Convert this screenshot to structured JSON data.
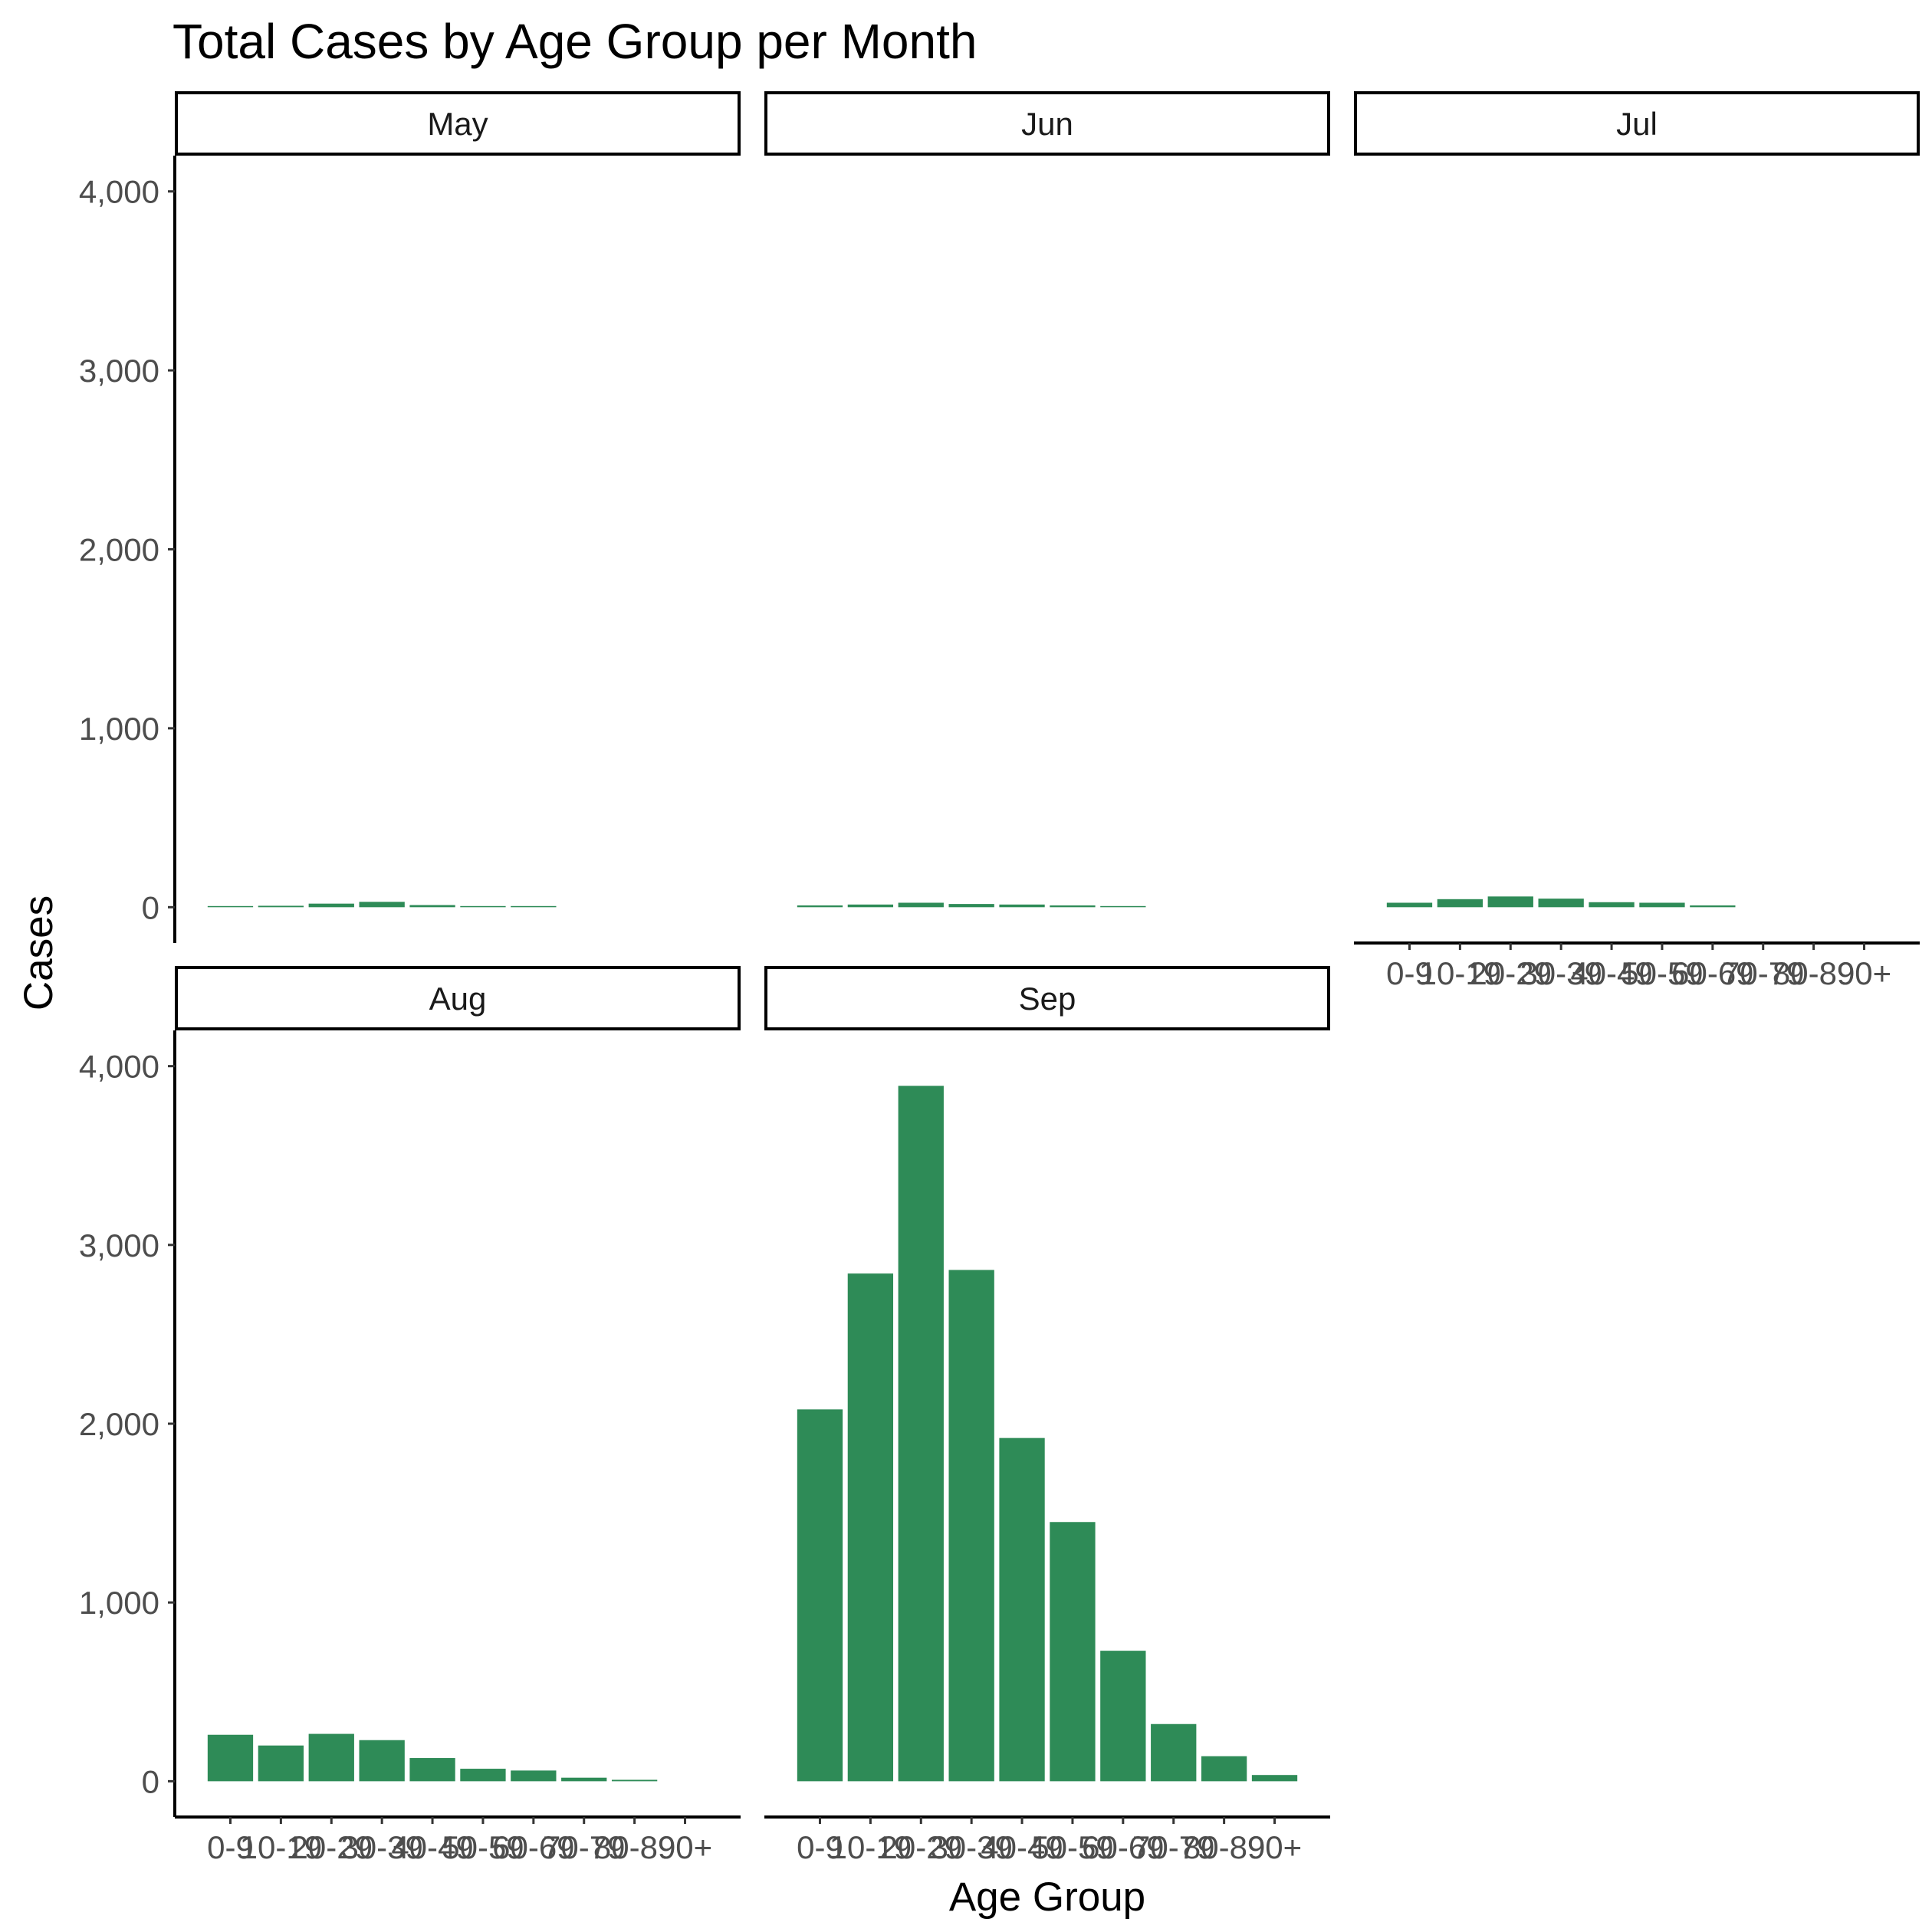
{
  "chart_data": {
    "type": "bar",
    "title": "Total Cases by Age Group per Month",
    "xlabel": "Age Group",
    "ylabel": "Cases",
    "ylim": [
      0,
      4000
    ],
    "y_ticks": [
      0,
      1000,
      2000,
      3000,
      4000
    ],
    "y_tick_labels": [
      "0",
      "1,000",
      "2,000",
      "3,000",
      "4,000"
    ],
    "categories": [
      "0-9",
      "10-19",
      "20-29",
      "30-39",
      "40-49",
      "50-59",
      "60-69",
      "70-79",
      "80-89",
      "90+"
    ],
    "bar_color": "#2E8B57",
    "grid": false,
    "legend": "none",
    "panels": [
      {
        "name": "May",
        "values": [
          5,
          8,
          20,
          30,
          12,
          6,
          4,
          0,
          0,
          0
        ]
      },
      {
        "name": "Jun",
        "values": [
          10,
          15,
          25,
          18,
          15,
          10,
          5,
          0,
          0,
          0
        ]
      },
      {
        "name": "Jul",
        "values": [
          25,
          45,
          60,
          48,
          28,
          25,
          10,
          0,
          0,
          0
        ]
      },
      {
        "name": "Aug",
        "values": [
          260,
          200,
          265,
          230,
          130,
          70,
          60,
          20,
          8,
          0
        ]
      },
      {
        "name": "Sep",
        "values": [
          2080,
          2840,
          3890,
          2860,
          1920,
          1450,
          730,
          320,
          140,
          35
        ]
      }
    ]
  }
}
